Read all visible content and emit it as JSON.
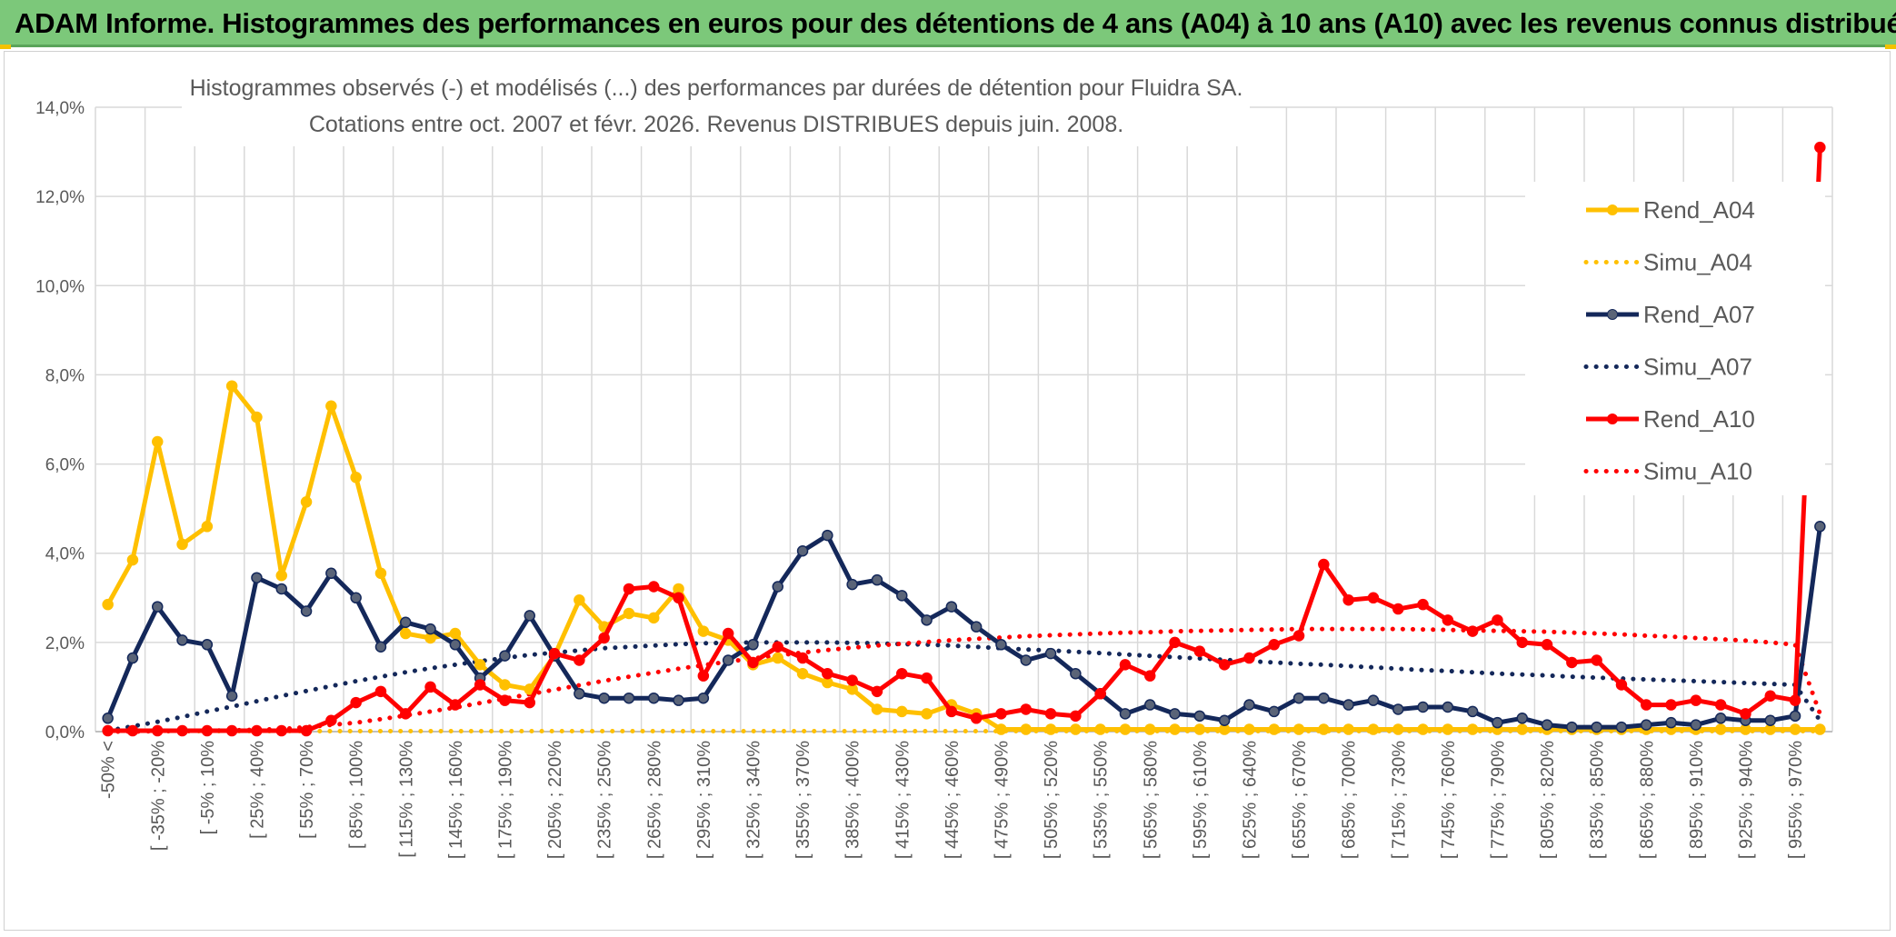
{
  "header": {
    "title": "ADAM Informe. Histogrammes des performances en euros pour des détentions de 4 ans (A04) à 10 ans (A10) avec les revenus connus distribués"
  },
  "chart_data": {
    "type": "line",
    "title_line1": "Histogrammes observés (-) et modélisés (...) des performances par durées de détention pour Fluidra SA.",
    "title_line2": "Cotations entre oct. 2007 et févr. 2026. Revenus DISTRIBUES depuis juin. 2008.",
    "ylim": [
      0,
      14
    ],
    "yticks": [
      "0,0%",
      "2,0%",
      "4,0%",
      "6,0%",
      "8,0%",
      "10,0%",
      "12,0%",
      "14,0%"
    ],
    "grid": true,
    "legend_position": "right",
    "x_tick_labels": [
      "-50% <",
      "[ -35% ; -20%",
      "[ -5% ; 10%",
      "[ 25% ; 40%",
      "[ 55% ; 70%",
      "[ 85% ; 100%",
      "[ 115% ; 130%",
      "[ 145% ; 160%",
      "[ 175% ; 190%",
      "[ 205% ; 220%",
      "[ 235% ; 250%",
      "[ 265% ; 280%",
      "[ 295% ; 310%",
      "[ 325% ; 340%",
      "[ 355% ; 370%",
      "[ 385% ; 400%",
      "[ 415% ; 430%",
      "[ 445% ; 460%",
      "[ 475% ; 490%",
      "[ 505% ; 520%",
      "[ 535% ; 550%",
      "[ 565% ; 580%",
      "[ 595% ; 610%",
      "[ 625% ; 640%",
      "[ 655% ; 670%",
      "[ 685% ; 700%",
      "[ 715% ; 730%",
      "[ 745% ; 760%",
      "[ 775% ; 790%",
      "[ 805% ; 820%",
      "[ 835% ; 850%",
      "[ 865% ; 880%",
      "[ 895% ; 910%",
      "[ 925% ; 940%",
      "[ 955% ; 970%"
    ],
    "n_categories": 70,
    "series": [
      {
        "name": "Rend_A04",
        "color": "#FFC000",
        "style": "solid",
        "markers": true,
        "values": [
          2.85,
          3.85,
          6.5,
          4.2,
          4.6,
          7.75,
          7.05,
          3.5,
          5.15,
          7.3,
          5.7,
          3.55,
          2.2,
          2.1,
          2.2,
          1.5,
          1.05,
          0.95,
          1.7,
          2.95,
          2.35,
          2.65,
          2.55,
          3.2,
          2.25,
          2.05,
          1.5,
          1.65,
          1.3,
          1.1,
          0.95,
          0.5,
          0.45,
          0.4,
          0.6,
          0.4,
          0.05,
          0.05,
          0.05,
          0.05,
          0.05,
          0.05,
          0.05,
          0.05,
          0.05,
          0.05,
          0.05,
          0.05,
          0.05,
          0.05,
          0.05,
          0.05,
          0.05,
          0.05,
          0.05,
          0.05,
          0.05,
          0.05,
          0.05,
          0.05,
          0.05,
          0.05,
          0.05,
          0.05,
          0.05,
          0.05,
          0.05,
          0.05,
          0.05,
          0.05
        ]
      },
      {
        "name": "Simu_A04",
        "color": "#FFC000",
        "style": "dotted",
        "markers": false,
        "values": [
          0.01,
          0.01,
          0.01,
          0.01,
          0.01,
          0.01,
          0.01,
          0.01,
          0.01,
          0.01,
          0.01,
          0.01,
          0.01,
          0.01,
          0.01,
          0.01,
          0.01,
          0.01,
          0.01,
          0.01,
          0.01,
          0.01,
          0.01,
          0.01,
          0.01,
          0.01,
          0.01,
          0.01,
          0.01,
          0.01,
          0.01,
          0.01,
          0.01,
          0.01,
          0.01,
          0.01,
          0.01,
          0.01,
          0.01,
          0.01,
          0.01,
          0.01,
          0.01,
          0.01,
          0.01,
          0.01,
          0.01,
          0.01,
          0.01,
          0.01,
          0.01,
          0.01,
          0.01,
          0.01,
          0.01,
          0.01,
          0.01,
          0.01,
          0.01,
          0.01,
          0.01,
          0.01,
          0.01,
          0.01,
          0.01,
          0.01,
          0.01,
          0.01,
          0.01,
          0.01
        ]
      },
      {
        "name": "Rend_A07",
        "color": "#14285A",
        "style": "solid",
        "markers": true,
        "values": [
          0.3,
          1.65,
          2.8,
          2.05,
          1.95,
          0.8,
          3.45,
          3.2,
          2.7,
          3.55,
          3.0,
          1.9,
          2.45,
          2.3,
          1.95,
          1.2,
          1.7,
          2.6,
          1.7,
          0.85,
          0.75,
          0.75,
          0.75,
          0.7,
          0.75,
          1.6,
          1.95,
          3.25,
          4.05,
          4.4,
          3.3,
          3.4,
          3.05,
          2.5,
          2.8,
          2.35,
          1.95,
          1.6,
          1.75,
          1.3,
          0.85,
          0.4,
          0.6,
          0.4,
          0.35,
          0.25,
          0.6,
          0.45,
          0.75,
          0.75,
          0.6,
          0.7,
          0.5,
          0.55,
          0.55,
          0.45,
          0.2,
          0.3,
          0.15,
          0.1,
          0.1,
          0.1,
          0.15,
          0.2,
          0.15,
          0.3,
          0.25,
          0.25,
          0.35,
          4.6
        ]
      },
      {
        "name": "Simu_A07",
        "color": "#14285A",
        "style": "dotted",
        "markers": false,
        "values": [
          0.02,
          0.12,
          0.22,
          0.33,
          0.45,
          0.56,
          0.68,
          0.8,
          0.91,
          1.02,
          1.13,
          1.23,
          1.33,
          1.42,
          1.5,
          1.58,
          1.65,
          1.72,
          1.77,
          1.82,
          1.87,
          1.9,
          1.93,
          1.96,
          1.98,
          1.99,
          2.0,
          2.0,
          2.0,
          2.0,
          1.99,
          1.98,
          1.96,
          1.95,
          1.93,
          1.9,
          1.87,
          1.84,
          1.82,
          1.79,
          1.76,
          1.73,
          1.7,
          1.67,
          1.64,
          1.61,
          1.58,
          1.55,
          1.52,
          1.5,
          1.47,
          1.44,
          1.41,
          1.38,
          1.36,
          1.33,
          1.3,
          1.28,
          1.26,
          1.23,
          1.21,
          1.19,
          1.17,
          1.15,
          1.13,
          1.11,
          1.09,
          1.07,
          1.05,
          0.25
        ]
      },
      {
        "name": "Rend_A10",
        "color": "#FF0000",
        "style": "solid",
        "markers": true,
        "values": [
          0.02,
          0.02,
          0.02,
          0.02,
          0.02,
          0.02,
          0.02,
          0.02,
          0.02,
          0.25,
          0.65,
          0.9,
          0.4,
          1.0,
          0.6,
          1.05,
          0.7,
          0.65,
          1.75,
          1.6,
          2.1,
          3.2,
          3.25,
          3.0,
          1.25,
          2.2,
          1.55,
          1.9,
          1.65,
          1.3,
          1.15,
          0.9,
          1.3,
          1.2,
          0.45,
          0.3,
          0.4,
          0.5,
          0.4,
          0.35,
          0.85,
          1.5,
          1.25,
          2.0,
          1.8,
          1.5,
          1.65,
          1.95,
          2.15,
          3.75,
          2.95,
          3.0,
          2.75,
          2.85,
          2.5,
          2.25,
          2.5,
          2.0,
          1.95,
          1.55,
          1.6,
          1.05,
          0.6,
          0.6,
          0.7,
          0.6,
          0.4,
          0.8,
          0.7,
          13.1
        ]
      },
      {
        "name": "Simu_A10",
        "color": "#FF0000",
        "style": "dotted",
        "markers": false,
        "values": [
          0.0,
          0.0,
          0.01,
          0.01,
          0.02,
          0.03,
          0.04,
          0.06,
          0.1,
          0.15,
          0.2,
          0.28,
          0.36,
          0.45,
          0.54,
          0.64,
          0.74,
          0.84,
          0.94,
          1.04,
          1.14,
          1.23,
          1.32,
          1.41,
          1.49,
          1.57,
          1.64,
          1.71,
          1.77,
          1.83,
          1.88,
          1.93,
          1.97,
          2.01,
          2.05,
          2.08,
          2.11,
          2.14,
          2.16,
          2.18,
          2.2,
          2.22,
          2.23,
          2.25,
          2.26,
          2.27,
          2.28,
          2.29,
          2.3,
          2.3,
          2.3,
          2.3,
          2.3,
          2.29,
          2.28,
          2.27,
          2.26,
          2.25,
          2.24,
          2.22,
          2.2,
          2.18,
          2.15,
          2.13,
          2.1,
          2.07,
          2.04,
          2.0,
          1.95,
          0.4
        ]
      }
    ]
  }
}
